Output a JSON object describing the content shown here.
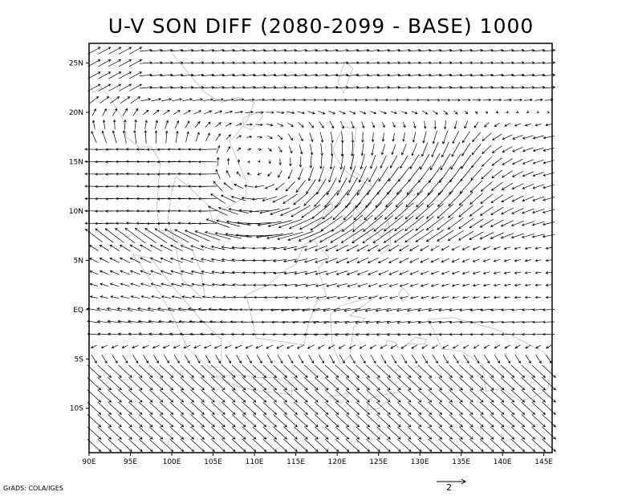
{
  "title": "U-V SON DIFF (2080-2099 - BASE) 1000",
  "credit": "GrADS: COLA/IGES",
  "map": {
    "x_ticks": [
      "90E",
      "95E",
      "100E",
      "105E",
      "110E",
      "115E",
      "120E",
      "125E",
      "130E",
      "135E",
      "140E",
      "145E"
    ],
    "y_ticks": [
      "25N",
      "20N",
      "15N",
      "10N",
      "5N",
      "EQ",
      "5S",
      "10S"
    ],
    "lon_range": [
      90,
      146
    ],
    "lat_range": [
      -14.5,
      27
    ],
    "reference_vector": {
      "magnitude": 2,
      "label": "2"
    },
    "coastline_color": "#bbbbbb",
    "vector_color": "#000000",
    "grid_spacing_deg": 1.25
  }
}
